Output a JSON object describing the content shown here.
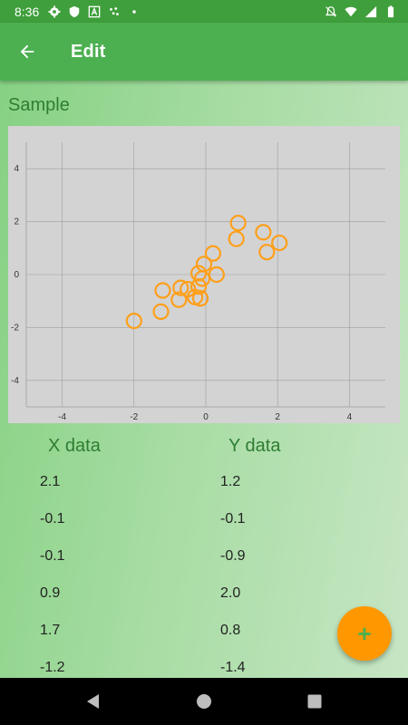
{
  "status_bar": {
    "time": "8:36",
    "icons_left": [
      "settings-icon",
      "shield-icon",
      "font-icon",
      "dots-icon",
      "dot-icon"
    ],
    "icons_right": [
      "notifications-off-icon",
      "wifi-icon",
      "signal-icon",
      "battery-icon"
    ]
  },
  "app_bar": {
    "title": "Edit",
    "back_icon": "arrow-left-icon"
  },
  "section": {
    "title": "Sample"
  },
  "chart_data": {
    "type": "scatter",
    "title": "",
    "xlabel": "",
    "ylabel": "",
    "xlim": [
      -5,
      5
    ],
    "ylim": [
      -5,
      5
    ],
    "x_ticks": [
      "-4",
      "-2",
      "0",
      "2",
      "4"
    ],
    "y_ticks": [
      "4",
      "2",
      "0",
      "-2",
      "-4"
    ],
    "x_tick_values": [
      -4,
      -2,
      0,
      2,
      4
    ],
    "y_tick_values": [
      4,
      2,
      0,
      -2,
      -4
    ],
    "grid": true,
    "marker": "hollow-circle",
    "marker_color": "#ff9f1a",
    "background": "#d3d3d3",
    "points": [
      {
        "x": -2.0,
        "y": -1.75
      },
      {
        "x": -1.25,
        "y": -1.4
      },
      {
        "x": -1.2,
        "y": -0.6
      },
      {
        "x": -0.75,
        "y": -0.95
      },
      {
        "x": -0.7,
        "y": -0.5
      },
      {
        "x": -0.5,
        "y": -0.55
      },
      {
        "x": -0.3,
        "y": -0.85
      },
      {
        "x": -0.2,
        "y": -0.45
      },
      {
        "x": -0.15,
        "y": -0.9
      },
      {
        "x": -0.1,
        "y": -0.15
      },
      {
        "x": -0.2,
        "y": 0.05
      },
      {
        "x": -0.05,
        "y": 0.4
      },
      {
        "x": 0.2,
        "y": 0.8
      },
      {
        "x": 0.3,
        "y": 0.0
      },
      {
        "x": 0.85,
        "y": 1.35
      },
      {
        "x": 0.9,
        "y": 1.95
      },
      {
        "x": 1.6,
        "y": 1.6
      },
      {
        "x": 1.7,
        "y": 0.85
      },
      {
        "x": 2.05,
        "y": 1.2
      }
    ]
  },
  "table": {
    "headers": {
      "x": "X data",
      "y": "Y data"
    },
    "rows": [
      {
        "x": "2.1",
        "y": "1.2"
      },
      {
        "x": "-0.1",
        "y": "-0.1"
      },
      {
        "x": "-0.1",
        "y": "-0.9"
      },
      {
        "x": "0.9",
        "y": "2.0"
      },
      {
        "x": "1.7",
        "y": "0.8"
      },
      {
        "x": "-1.2",
        "y": "-1.4"
      }
    ]
  },
  "fab": {
    "label": "+"
  },
  "colors": {
    "status_bar": "#3f9f3c",
    "app_bar": "#4caf50",
    "accent": "#ff9800",
    "text_green": "#2e7d32"
  }
}
